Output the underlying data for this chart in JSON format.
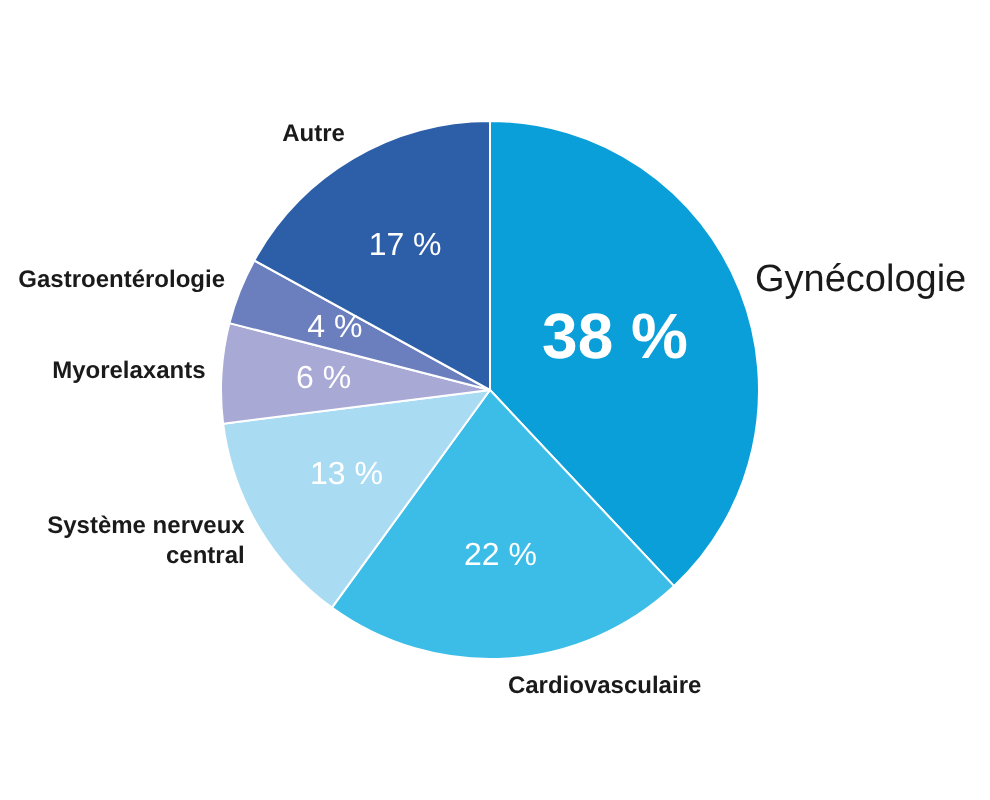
{
  "chart_data": {
    "type": "pie",
    "categories": [
      "Gynécologie",
      "Cardiovasculaire",
      "Système nerveux central",
      "Myorelaxants",
      "Gastroentérologie",
      "Autre"
    ],
    "values": [
      38,
      22,
      13,
      6,
      4,
      17
    ],
    "value_labels": [
      "38 %",
      "22 %",
      "13 %",
      "6 %",
      "4 %",
      "17 %"
    ],
    "colors": [
      "#0a9fd8",
      "#3cbde8",
      "#a9dcf2",
      "#a8a9d5",
      "#6b7fbf",
      "#2d5fa8"
    ],
    "legend": false
  }
}
